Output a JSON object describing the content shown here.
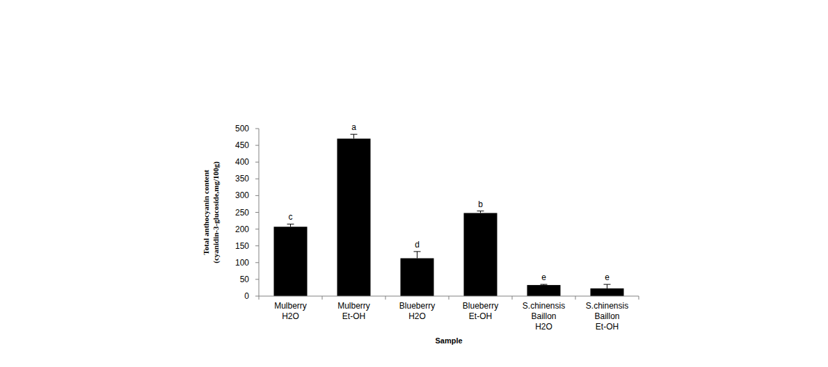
{
  "chart_data": {
    "type": "bar",
    "x_label": "Sample",
    "y_label": [
      "Total anthocyanin content",
      "(cyanidin-3-glucoside,mg/100g)"
    ],
    "categories": [
      "Mulberry\nH2O",
      "Mulberry\nEt-OH",
      "Blueberry\nH2O",
      "Blueberry\nEt-OH",
      "S.chinensis\nBaillon\nH2O",
      "S.chinensis\nBaillon\nEt-OH"
    ],
    "values": [
      207,
      470,
      113,
      248,
      33,
      23
    ],
    "errors": [
      8,
      13,
      20,
      6,
      2,
      12
    ],
    "annotations": [
      "c",
      "a",
      "d",
      "b",
      "e",
      "e"
    ],
    "color": "#000000",
    "ylim": [
      0,
      500
    ],
    "yticks": [
      0,
      50,
      100,
      150,
      200,
      250,
      300,
      350,
      400,
      450,
      500
    ],
    "grid": false
  }
}
